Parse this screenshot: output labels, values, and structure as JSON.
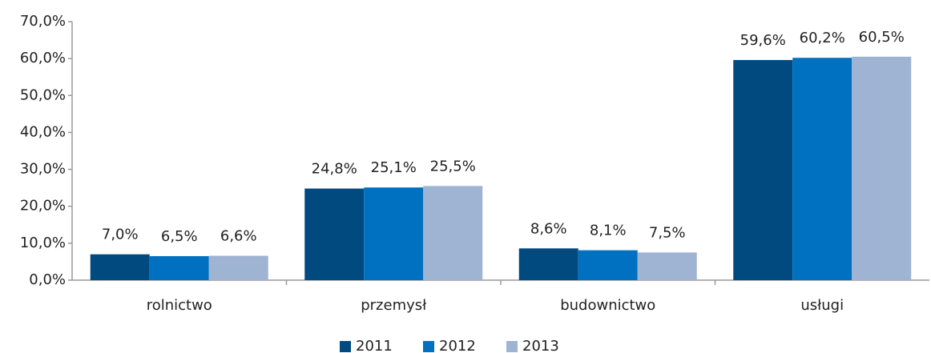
{
  "chart_data": {
    "type": "bar",
    "categories": [
      "rolnictwo",
      "przemysł",
      "budownictwo",
      "usługi"
    ],
    "series": [
      {
        "name": "2011",
        "color": "#004a80",
        "values": [
          7.0,
          24.8,
          8.6,
          59.6
        ],
        "value_labels": [
          "7,0%",
          "24,8%",
          "8,6%",
          "59,6%"
        ]
      },
      {
        "name": "2012",
        "color": "#0070c0",
        "values": [
          6.5,
          25.1,
          8.1,
          60.2
        ],
        "value_labels": [
          "6,5%",
          "25,1%",
          "8,1%",
          "60,2%"
        ]
      },
      {
        "name": "2013",
        "color": "#9fb3d3",
        "values": [
          6.6,
          25.5,
          7.5,
          60.5
        ],
        "value_labels": [
          "6,6%",
          "25,5%",
          "7,5%",
          "60,5%"
        ]
      }
    ],
    "ylim": [
      0,
      70
    ],
    "yticks": [
      {
        "value": 0,
        "label": "0,0%"
      },
      {
        "value": 10,
        "label": "10,0%"
      },
      {
        "value": 20,
        "label": "20,0%"
      },
      {
        "value": 30,
        "label": "30,0%"
      },
      {
        "value": 40,
        "label": "40,0%"
      },
      {
        "value": 50,
        "label": "50,0%"
      },
      {
        "value": 60,
        "label": "60,0%"
      },
      {
        "value": 70,
        "label": "70,0%"
      }
    ],
    "legend": "bottom"
  }
}
